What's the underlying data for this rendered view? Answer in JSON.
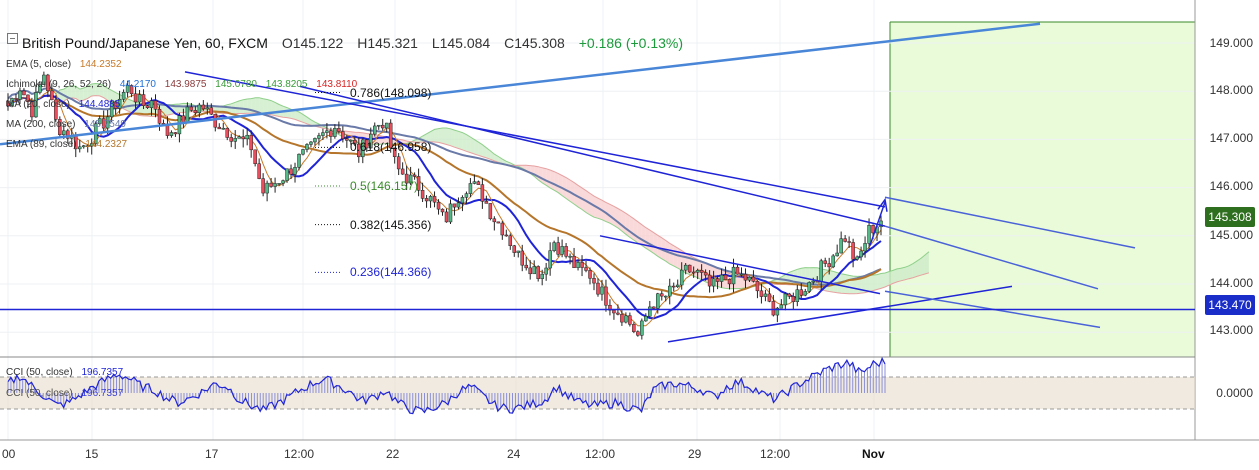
{
  "header": {
    "title": "British Pound/Japanese Yen, 60, FXCM",
    "open": "O145.122",
    "high": "H145.321",
    "low": "L145.084",
    "close": "C145.308",
    "change": "+0.186 (+0.13%)"
  },
  "legend": {
    "ema5": {
      "label": "EMA (5, close)",
      "value": "144.2352"
    },
    "ichimoku": {
      "label": "Ichimoku (9, 26, 52, 26)",
      "values": [
        "44.2170",
        "143.9875",
        "145.0780",
        "143.8205",
        "143.8110"
      ]
    },
    "ma20": {
      "label": "MA (20, close)",
      "value": "144.4885"
    },
    "ma200": {
      "label": "MA (200, close)",
      "value": "145.7549"
    },
    "ema89": {
      "label": "EMA (89, close)",
      "value": "144.2327"
    },
    "cci50": {
      "label": "CCI (50, close)",
      "value": "196.7357"
    },
    "cci50b": {
      "label": "CCI (50, close)",
      "value": "196.7357"
    }
  },
  "fib_labels": {
    "f786": "0.786(148.098)",
    "f618": "0.618(146.958)",
    "f5": "0.5(146.157)",
    "f382": "0.382(145.356)",
    "f236": "0.236(144.366)"
  },
  "price_axis": [
    "149.000",
    "148.000",
    "147.000",
    "146.000",
    "145.000",
    "144.000",
    "143.000"
  ],
  "cci_axis": [
    "0.0000"
  ],
  "flags": {
    "last_price": "145.308",
    "support": "143.470"
  },
  "time_axis": [
    "00",
    "15",
    "17",
    "12:00",
    "22",
    "24",
    "12:00",
    "29",
    "12:00",
    "Nov"
  ],
  "colors": {
    "up": "#53b987",
    "down": "#eb4d5c",
    "trend": "#1f24d6",
    "ema5": "#c77a2a",
    "ma20": "#1f24d6",
    "ma200": "#6a7aa8",
    "ema89": "#b5762c",
    "forecast_zone": "#e9fbd9",
    "last_price_flag": "#2e6e1f",
    "support_flag": "#1a2dc8",
    "cci": "#1f24d6"
  },
  "chart_data": {
    "type": "candlestick",
    "title": "British Pound/Japanese Yen, 60, FXCM",
    "y_range": [
      142.6,
      149.5
    ],
    "y_ticks": [
      143,
      144,
      145,
      146,
      147,
      148,
      149
    ],
    "x_tick_labels": [
      "00",
      "15",
      "17",
      "12:00",
      "22",
      "24",
      "12:00",
      "29",
      "12:00",
      "Nov"
    ],
    "close_path": [
      147.7,
      148.1,
      147.6,
      148.4,
      147.3,
      147.1,
      146.8,
      147.1,
      147.4,
      147.8,
      148.1,
      147.7,
      147.8,
      147.1,
      147.3,
      147.6,
      147.7,
      147.4,
      147.2,
      147.0,
      146.9,
      145.9,
      146.1,
      146.3,
      146.6,
      146.8,
      147.1,
      147.3,
      147.0,
      146.7,
      147.2,
      147.4,
      146.4,
      146.2,
      146.0,
      145.7,
      145.3,
      145.8,
      146.1,
      145.9,
      145.4,
      145.1,
      144.6,
      144.4,
      144.2,
      144.9,
      144.6,
      144.3,
      144.2,
      143.8,
      143.5,
      143.3,
      142.9,
      143.6,
      143.7,
      143.9,
      144.3,
      144.2,
      143.9,
      144.1,
      144.2,
      144.1,
      143.8,
      143.5,
      143.6,
      143.8,
      144.0,
      144.3,
      144.6,
      145.0,
      144.4,
      145.1,
      145.31
    ],
    "fibonacci": [
      {
        "level": 0.786,
        "price": 148.098
      },
      {
        "level": 0.618,
        "price": 146.958
      },
      {
        "level": 0.5,
        "price": 146.157
      },
      {
        "level": 0.382,
        "price": 145.356
      },
      {
        "level": 0.236,
        "price": 144.366
      }
    ],
    "support_level": 143.47,
    "last_price": 145.308,
    "indicators": [
      "EMA (5, close)",
      "Ichimoku (9, 26, 52, 26)",
      "MA (20, close)",
      "MA (200, close)",
      "EMA (89, close)"
    ],
    "cci": {
      "name": "CCI (50, close)",
      "last": 196.7357,
      "values": [
        60,
        110,
        40,
        -20,
        -80,
        -60,
        -10,
        40,
        80,
        120,
        90,
        40,
        20,
        -30,
        -60,
        -30,
        10,
        60,
        40,
        -40,
        -80,
        -110,
        -70,
        -30,
        20,
        60,
        90,
        50,
        10,
        -50,
        -30,
        20,
        -60,
        -100,
        -120,
        -90,
        -60,
        10,
        40,
        -20,
        -80,
        -100,
        -90,
        -70,
        -50,
        40,
        -20,
        -60,
        -80,
        -70,
        -60,
        -90,
        -110,
        20,
        50,
        60,
        40,
        20,
        -30,
        40,
        70,
        40,
        -10,
        -40,
        10,
        60,
        100,
        140,
        170,
        190,
        120,
        180,
        196.7
      ]
    }
  }
}
